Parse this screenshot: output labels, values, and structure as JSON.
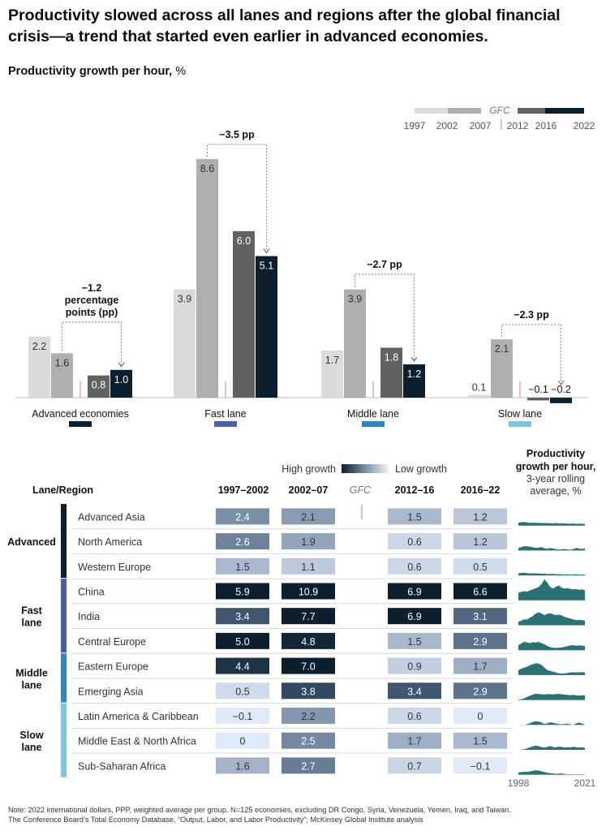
{
  "title": "Productivity slowed across all lanes and regions after the global financial crisis—a trend that started even earlier in advanced economies.",
  "subtitle_bold": "Productivity growth per hour,",
  "subtitle_unit": " %",
  "chart_data": [
    {
      "type": "bar",
      "ylabel": "Productivity growth per hour, %",
      "series": [
        {
          "name": "1997–2002",
          "color": "#dcdadb",
          "values": [
            2.2,
            3.9,
            1.7,
            0.1
          ]
        },
        {
          "name": "2002–2007",
          "color": "#b0afaf",
          "values": [
            1.6,
            8.6,
            3.9,
            2.1
          ]
        },
        {
          "name": "2012–2016",
          "color": "#626262",
          "values": [
            0.8,
            6.0,
            1.8,
            -0.1
          ]
        },
        {
          "name": "2016–2022",
          "color": "#0c1f2f",
          "values": [
            1.0,
            5.1,
            1.2,
            -0.2
          ]
        }
      ],
      "categories": [
        "Advanced economies",
        "Fast lane",
        "Middle lane",
        "Slow lane"
      ],
      "category_colors": [
        "#0c1f2f",
        "#4a5faa",
        "#2f85c1",
        "#79c4e8"
      ],
      "value_labels": [
        [
          "2.2",
          "1.6",
          "0.8",
          "1.0"
        ],
        [
          "3.9",
          "8.6",
          "6.0",
          "5.1"
        ],
        [
          "1.7",
          "3.9",
          "1.8",
          "1.2"
        ],
        [
          "0.1",
          "2.1",
          "−0.1",
          "−0.2"
        ]
      ],
      "annotations": [
        {
          "lines": [
            "−1.2",
            "percentage",
            "points (pp)"
          ]
        },
        {
          "lines": [
            "−3.5 pp"
          ]
        },
        {
          "lines": [
            "−2.7 pp"
          ]
        },
        {
          "lines": [
            "−2.3 pp"
          ]
        }
      ],
      "legend": {
        "gfc_label": "GFC",
        "years": [
          "1997",
          "2002",
          "2007",
          "2012",
          "2016",
          "2022"
        ],
        "position": "top-right"
      }
    },
    {
      "type": "heatmap",
      "scale_labels": {
        "high": "High growth",
        "low": "Low growth"
      },
      "header": {
        "lane_region": "Lane/Region",
        "columns": [
          "1997–2002",
          "2002–07",
          "GFC",
          "2012–16",
          "2016–22"
        ]
      },
      "sparkline_header": {
        "bold1": "Productivity",
        "bold2": "growth per hour,",
        "line3": "3-year rolling",
        "line4": "average, %"
      },
      "sparkline_axis": [
        "1998",
        "2021"
      ],
      "groups": [
        {
          "label": [
            "Advanced"
          ],
          "color": "#0c1f2f",
          "rows": [
            0,
            2
          ]
        },
        {
          "label": [
            "Fast",
            "lane"
          ],
          "color": "#4a5faa",
          "rows": [
            3,
            5
          ]
        },
        {
          "label": [
            "Middle",
            "lane"
          ],
          "color": "#2f85c1",
          "rows": [
            6,
            7
          ]
        },
        {
          "label": [
            "Slow",
            "lane"
          ],
          "color": "#79c4e8",
          "rows": [
            8,
            10
          ]
        }
      ],
      "rows": [
        {
          "region": "Advanced Asia",
          "labels": [
            "2.4",
            "2.1",
            "1.5",
            "1.2"
          ],
          "values": [
            2.4,
            2.1,
            1.5,
            1.2
          ],
          "spark": [
            1.8,
            2.0,
            2.1,
            1.9,
            1.7,
            1.8,
            1.6,
            1.7,
            1.5,
            1.6,
            1.4,
            1.5,
            1.3,
            1.6,
            1.2,
            1.4,
            1.3,
            1.2,
            1.1,
            1.3,
            1.0,
            1.2,
            1.1,
            1.0
          ]
        },
        {
          "region": "North America",
          "labels": [
            "2.6",
            "1.9",
            "0.6",
            "1.2"
          ],
          "values": [
            2.6,
            1.9,
            0.6,
            1.2
          ],
          "spark": [
            1.5,
            2.0,
            2.6,
            2.5,
            2.3,
            1.9,
            1.6,
            1.8,
            2.0,
            1.4,
            1.0,
            1.5,
            1.2,
            0.8,
            0.6,
            0.7,
            0.9,
            0.6,
            0.5,
            0.8,
            1.6,
            1.2,
            0.9,
            1.4
          ]
        },
        {
          "region": "Western Europe",
          "labels": [
            "1.5",
            "1.1",
            "0.6",
            "0.5"
          ],
          "values": [
            1.5,
            1.1,
            0.6,
            0.5
          ],
          "spark": [
            1.3,
            1.5,
            1.6,
            1.4,
            1.2,
            1.3,
            1.1,
            1.2,
            1.0,
            1.1,
            0.8,
            0.9,
            0.9,
            0.7,
            0.8,
            0.6,
            0.6,
            0.7,
            0.5,
            0.6,
            0.7,
            0.5,
            0.6,
            0.5
          ]
        },
        {
          "region": "China",
          "labels": [
            "5.9",
            "10.9",
            "6.9",
            "6.6"
          ],
          "values": [
            5.9,
            10.9,
            6.9,
            6.6
          ],
          "spark": [
            4.5,
            5.0,
            5.5,
            5.2,
            5.9,
            6.5,
            7.2,
            8.0,
            9.5,
            12.5,
            10.5,
            8.0,
            7.0,
            8.2,
            8.8,
            7.5,
            7.0,
            7.2,
            6.8,
            6.5,
            6.8,
            6.2,
            6.6,
            6.0
          ]
        },
        {
          "region": "India",
          "labels": [
            "3.4",
            "7.7",
            "6.9",
            "3.1"
          ],
          "values": [
            3.4,
            7.7,
            6.9,
            3.1
          ],
          "spark": [
            2.0,
            2.8,
            3.5,
            3.4,
            4.5,
            5.5,
            7.0,
            7.7,
            7.0,
            6.0,
            6.8,
            7.2,
            6.5,
            6.0,
            6.3,
            5.8,
            5.0,
            4.5,
            4.0,
            3.5,
            3.0,
            3.2,
            3.0,
            2.8
          ]
        },
        {
          "region": "Central Europe",
          "labels": [
            "5.0",
            "4.8",
            "1.5",
            "2.9"
          ],
          "values": [
            5.0,
            4.8,
            1.5,
            2.9
          ],
          "spark": [
            3.0,
            4.0,
            5.0,
            4.6,
            4.2,
            4.8,
            4.5,
            4.9,
            4.2,
            3.5,
            2.5,
            1.8,
            1.5,
            1.3,
            1.5,
            1.7,
            2.0,
            2.4,
            2.8,
            3.0,
            2.6,
            2.9,
            2.7,
            2.5
          ]
        },
        {
          "region": "Eastern Europe",
          "labels": [
            "4.4",
            "7.0",
            "0.9",
            "1.7"
          ],
          "values": [
            4.4,
            7.0,
            0.9,
            1.7
          ],
          "spark": [
            3.0,
            3.8,
            4.4,
            5.0,
            5.8,
            6.5,
            7.0,
            6.8,
            6.0,
            4.5,
            3.0,
            2.5,
            2.0,
            1.5,
            1.0,
            0.9,
            1.0,
            1.3,
            1.6,
            1.7,
            1.5,
            1.8,
            1.7,
            1.6
          ]
        },
        {
          "region": "Emerging Asia",
          "labels": [
            "0.5",
            "3.8",
            "3.4",
            "2.9"
          ],
          "values": [
            0.5,
            3.8,
            3.4,
            2.9
          ],
          "spark": [
            0.3,
            0.5,
            1.0,
            1.8,
            2.5,
            3.2,
            3.8,
            3.6,
            3.4,
            3.2,
            3.5,
            3.4,
            3.3,
            3.5,
            3.6,
            3.4,
            3.2,
            3.0,
            2.9,
            3.1,
            2.8,
            2.6,
            2.9,
            2.7
          ]
        },
        {
          "region": "Latin America & Caribbean",
          "labels": [
            "−0.1",
            "2.2",
            "0.6",
            "0"
          ],
          "values": [
            -0.1,
            2.2,
            0.6,
            0.0
          ],
          "spark": [
            0.0,
            0.2,
            0.0,
            0.5,
            1.0,
            1.8,
            2.2,
            2.0,
            1.5,
            0.6,
            1.0,
            1.6,
            1.2,
            0.8,
            0.6,
            0.4,
            0.6,
            0.8,
            0.3,
            0.0,
            0.9,
            1.4,
            0.8,
            0.2
          ]
        },
        {
          "region": "Middle East & North Africa",
          "labels": [
            "0",
            "2.5",
            "1.7",
            "1.5"
          ],
          "values": [
            0.0,
            2.5,
            1.7,
            1.5
          ],
          "spark": [
            0.0,
            0.1,
            0.3,
            0.8,
            1.5,
            2.0,
            2.5,
            2.2,
            1.6,
            1.4,
            1.8,
            2.2,
            1.7,
            1.5,
            1.9,
            1.7,
            1.4,
            1.6,
            1.5,
            1.8,
            1.6,
            1.3,
            1.5,
            1.2
          ]
        },
        {
          "region": "Sub-Saharan Africa",
          "labels": [
            "1.6",
            "2.7",
            "0.7",
            "−0.1"
          ],
          "values": [
            1.6,
            2.7,
            0.7,
            -0.1
          ],
          "spark": [
            1.4,
            1.6,
            1.8,
            1.7,
            2.0,
            2.3,
            2.7,
            2.5,
            2.0,
            1.6,
            1.2,
            0.9,
            0.8,
            0.6,
            0.7,
            0.8,
            0.5,
            0.3,
            0.2,
            0.1,
            0.0,
            0.2,
            0.3,
            0.1
          ]
        }
      ]
    }
  ],
  "note": "Note: 2022 international dollars, PPP, weighted average per group. N=125 economies, excluding DR Congo, Syria, Venezuela, Yemen, Iraq, and Taiwan.",
  "source": "The Conference Board’s Total Economy Database, “Output, Labor, and Labor Productivity”; McKinsey Global Institute analysis"
}
